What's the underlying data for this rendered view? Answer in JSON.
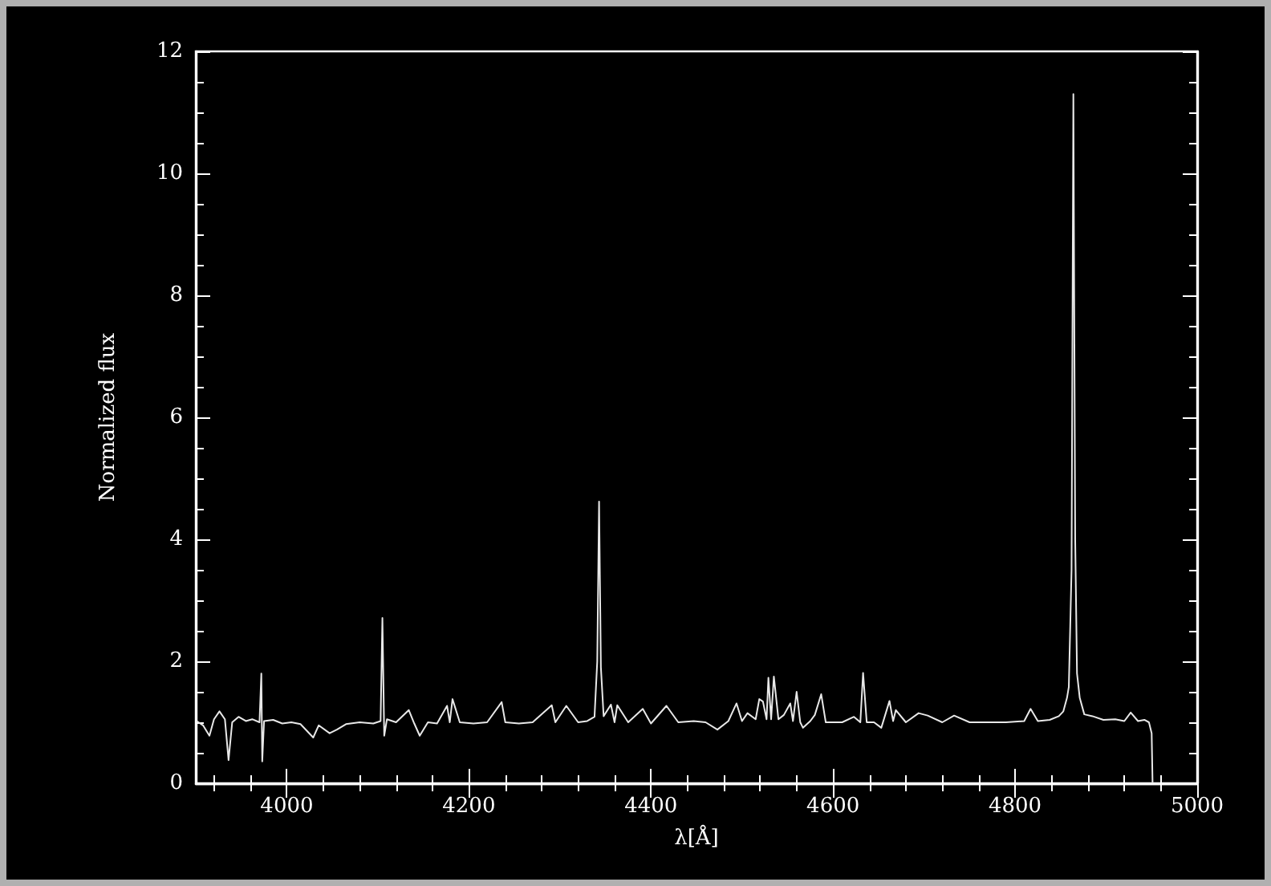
{
  "chart_data": {
    "type": "line",
    "xlabel": "λ[Å]",
    "ylabel": "Normalized flux",
    "xlim": [
      3900,
      5000
    ],
    "ylim": [
      0,
      12
    ],
    "xticks": [
      4000,
      4200,
      4400,
      4600,
      4800,
      5000
    ],
    "yticks": [
      0,
      2,
      4,
      6,
      8,
      10,
      12
    ],
    "grid": false,
    "marker": "none",
    "line_style": "solid",
    "series": [
      {
        "color": "#e8e8e8",
        "x": [
          3901,
          3908,
          3915,
          3920,
          3926,
          3932,
          3936,
          3940,
          3947,
          3955,
          3962,
          3970,
          3972,
          3973,
          3975,
          3985,
          3995,
          4005,
          4015,
          4029,
          4035,
          4047,
          4055,
          4065,
          4080,
          4095,
          4103,
          4105,
          4107,
          4110,
          4120,
          4134,
          4140,
          4146,
          4155,
          4165,
          4176,
          4179,
          4182,
          4190,
          4205,
          4220,
          4236,
          4240,
          4255,
          4270,
          4291,
          4295,
          4307,
          4320,
          4330,
          4338,
          4341,
          4343,
          4345,
          4348,
          4356,
          4360,
          4363,
          4375,
          4391,
          4400,
          4417,
          4430,
          4447,
          4460,
          4473,
          4485,
          4494,
          4500,
          4506,
          4515,
          4519,
          4523,
          4527,
          4529,
          4532,
          4535,
          4540,
          4546,
          4553,
          4556,
          4560,
          4564,
          4567,
          4575,
          4580,
          4587,
          4592,
          4600,
          4610,
          4623,
          4630,
          4633,
          4637,
          4645,
          4653,
          4662,
          4666,
          4669,
          4680,
          4694,
          4704,
          4720,
          4733,
          4750,
          4770,
          4790,
          4810,
          4817,
          4825,
          4838,
          4848,
          4853,
          4857,
          4859,
          4862,
          4864,
          4866,
          4868,
          4871,
          4876,
          4885,
          4897,
          4910,
          4920,
          4927,
          4935,
          4942,
          4947,
          4950,
          4951
        ],
        "values": [
          1.02,
          0.95,
          0.78,
          1.05,
          1.18,
          1.05,
          0.38,
          1.0,
          1.09,
          1.02,
          1.05,
          1.0,
          1.8,
          0.36,
          1.02,
          1.04,
          0.98,
          1.0,
          0.97,
          0.75,
          0.95,
          0.82,
          0.88,
          0.97,
          1.0,
          0.98,
          1.02,
          2.71,
          0.78,
          1.05,
          1.0,
          1.2,
          0.98,
          0.78,
          1.0,
          0.98,
          1.27,
          1.0,
          1.38,
          1.0,
          0.98,
          1.0,
          1.33,
          1.0,
          0.98,
          1.0,
          1.28,
          1.0,
          1.27,
          1.0,
          1.02,
          1.09,
          2.0,
          4.62,
          1.9,
          1.1,
          1.29,
          1.0,
          1.28,
          1.0,
          1.22,
          0.98,
          1.27,
          1.0,
          1.02,
          1.0,
          0.88,
          1.02,
          1.31,
          1.02,
          1.15,
          1.05,
          1.38,
          1.34,
          1.05,
          1.73,
          1.05,
          1.75,
          1.05,
          1.12,
          1.31,
          1.02,
          1.5,
          1.0,
          0.91,
          1.02,
          1.12,
          1.46,
          1.0,
          1.0,
          1.0,
          1.09,
          1.0,
          1.81,
          1.0,
          1.0,
          0.91,
          1.35,
          1.02,
          1.2,
          1.0,
          1.15,
          1.11,
          1.0,
          1.11,
          1.0,
          1.0,
          1.0,
          1.02,
          1.22,
          1.02,
          1.04,
          1.1,
          1.18,
          1.4,
          1.58,
          3.5,
          11.3,
          4.0,
          1.8,
          1.4,
          1.13,
          1.1,
          1.04,
          1.05,
          1.02,
          1.16,
          1.02,
          1.04,
          1.0,
          0.82,
          0
        ]
      }
    ]
  }
}
